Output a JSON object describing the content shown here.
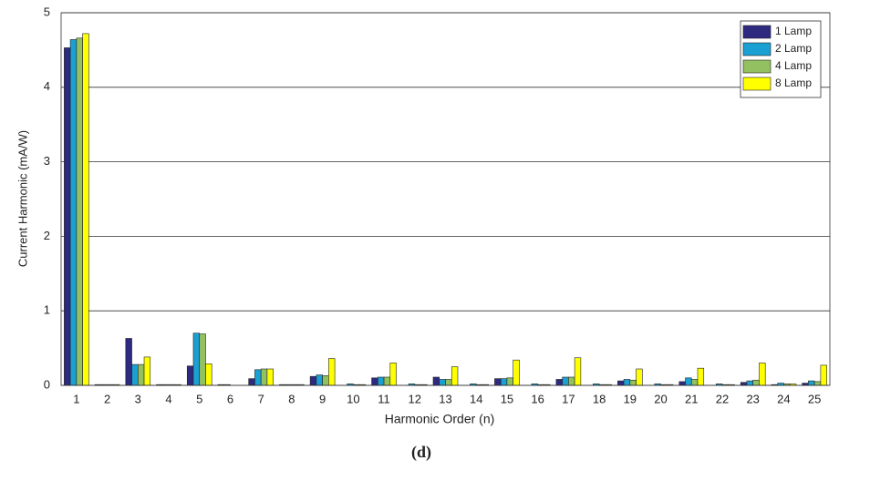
{
  "chart_data": {
    "type": "bar",
    "xlabel": "Harmonic Order (n)",
    "ylabel": "Current Harmonic (mA/W)",
    "categories": [
      "1",
      "2",
      "3",
      "4",
      "5",
      "6",
      "7",
      "8",
      "9",
      "10",
      "11",
      "12",
      "13",
      "14",
      "15",
      "16",
      "17",
      "18",
      "19",
      "20",
      "21",
      "22",
      "23",
      "24",
      "25"
    ],
    "series": [
      {
        "name": "1 Lamp",
        "color": "#2e2a80",
        "values": [
          4.53,
          0.01,
          0.63,
          0.01,
          0.26,
          0.01,
          0.09,
          0.01,
          0.12,
          0.0,
          0.1,
          0.0,
          0.11,
          0.0,
          0.09,
          0.0,
          0.08,
          0.0,
          0.06,
          0.0,
          0.05,
          0.0,
          0.04,
          0.01,
          0.03
        ]
      },
      {
        "name": "2 Lamp",
        "color": "#1aa0d2",
        "values": [
          4.64,
          0.01,
          0.28,
          0.01,
          0.7,
          0.01,
          0.21,
          0.01,
          0.14,
          0.02,
          0.11,
          0.02,
          0.08,
          0.02,
          0.09,
          0.02,
          0.11,
          0.02,
          0.08,
          0.02,
          0.1,
          0.02,
          0.06,
          0.03,
          0.06
        ]
      },
      {
        "name": "4 Lamp",
        "color": "#93c060",
        "values": [
          4.66,
          0.01,
          0.28,
          0.01,
          0.69,
          0.0,
          0.22,
          0.01,
          0.13,
          0.01,
          0.11,
          0.01,
          0.08,
          0.01,
          0.1,
          0.01,
          0.11,
          0.01,
          0.07,
          0.01,
          0.08,
          0.01,
          0.07,
          0.02,
          0.05
        ]
      },
      {
        "name": "8 Lamp",
        "color": "#ffff00",
        "values": [
          4.72,
          0.01,
          0.38,
          0.01,
          0.29,
          0.0,
          0.22,
          0.01,
          0.36,
          0.01,
          0.3,
          0.01,
          0.25,
          0.01,
          0.34,
          0.01,
          0.37,
          0.01,
          0.22,
          0.01,
          0.23,
          0.01,
          0.3,
          0.02,
          0.27
        ]
      }
    ],
    "ylim": [
      0,
      5
    ],
    "yticks": [
      0,
      1,
      2,
      3,
      4,
      5
    ],
    "grid": true,
    "legend": "upper-right"
  },
  "caption": "(d)"
}
